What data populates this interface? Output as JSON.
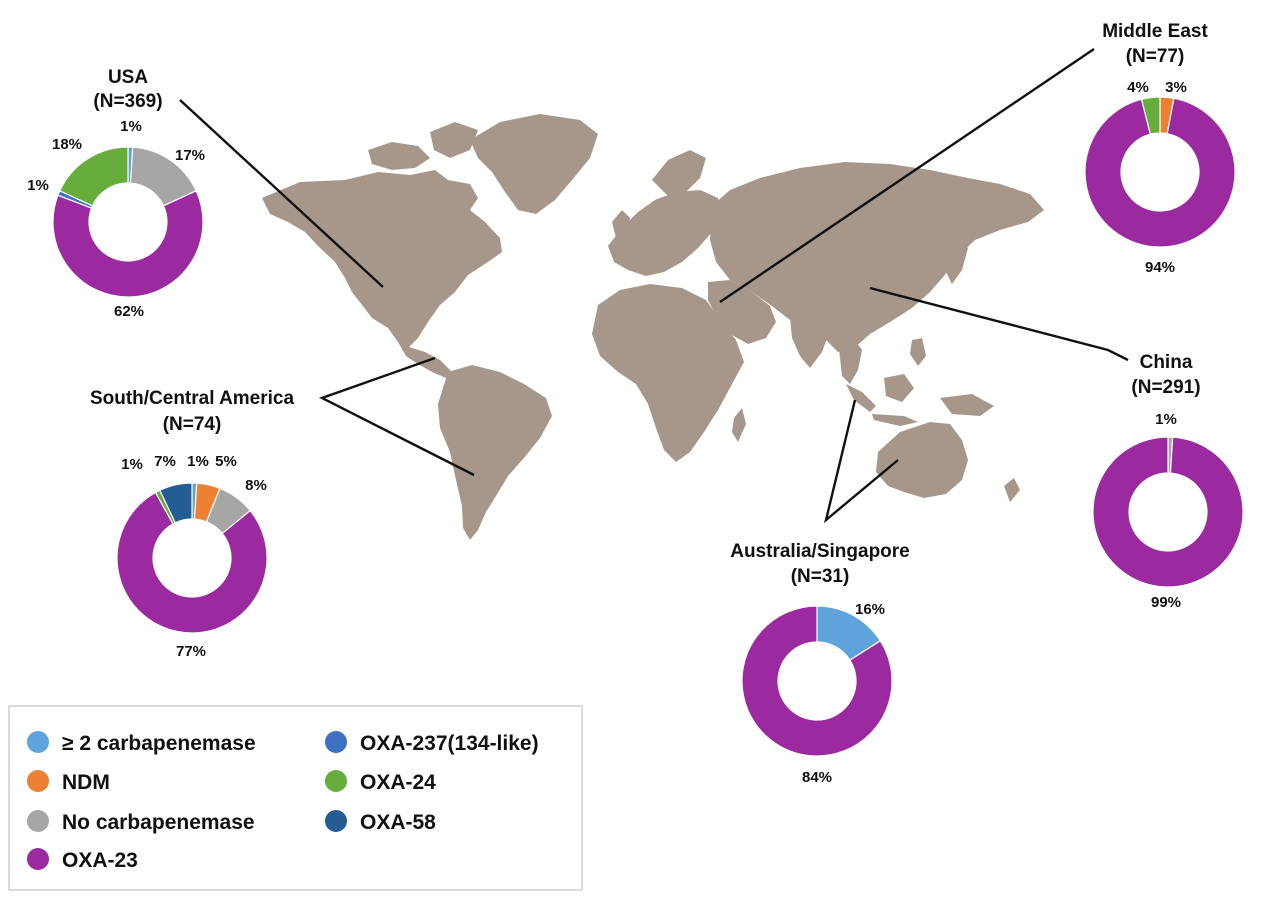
{
  "colors": {
    "map_land": "#a7978a",
    "ge2_carbapenemase": "#5ea3dc",
    "NDM": "#ed8033",
    "No_carbapenemase": "#a6a6a6",
    "OXA-23": "#9b2aa0",
    "OXA-237": "#3d6fc3",
    "OXA-24": "#66ad3c",
    "OXA-58": "#235d93"
  },
  "legend": {
    "items": [
      {
        "key": "ge2",
        "label": "≥ 2 carbapenemase",
        "color": "#5ea3dc"
      },
      {
        "key": "ndm",
        "label": "NDM",
        "color": "#ed8033"
      },
      {
        "key": "none",
        "label": "No carbapenemase",
        "color": "#a6a6a6"
      },
      {
        "key": "oxa23",
        "label": "OXA-23",
        "color": "#9b2aa0"
      },
      {
        "key": "oxa237",
        "label": "OXA-237(134-like)",
        "color": "#3d6fc3"
      },
      {
        "key": "oxa24",
        "label": "OXA-24",
        "color": "#66ad3c"
      },
      {
        "key": "oxa58",
        "label": "OXA-58",
        "color": "#235d93"
      }
    ]
  },
  "chart_data": [
    {
      "type": "pie",
      "region": "USA",
      "n_label": "(N=369)",
      "slices": [
        {
          "category": "≥ 2 carbapenemase",
          "value": 1,
          "label": "1%"
        },
        {
          "category": "No carbapenemase",
          "value": 17,
          "label": "17%"
        },
        {
          "category": "OXA-23",
          "value": 62,
          "label": "62%"
        },
        {
          "category": "OXA-237(134-like)",
          "value": 1,
          "label": "1%"
        },
        {
          "category": "OXA-24",
          "value": 18,
          "label": "18%"
        }
      ]
    },
    {
      "type": "pie",
      "region": "South/Central America",
      "n_label": "(N=74)",
      "slices": [
        {
          "category": "≥ 2 carbapenemase",
          "value": 1,
          "label": "1%"
        },
        {
          "category": "NDM",
          "value": 5,
          "label": "5%"
        },
        {
          "category": "No carbapenemase",
          "value": 8,
          "label": "8%"
        },
        {
          "category": "OXA-23",
          "value": 77,
          "label": "77%"
        },
        {
          "category": "OXA-24",
          "value": 1,
          "label": "1%"
        },
        {
          "category": "OXA-58",
          "value": 7,
          "label": "7%"
        }
      ]
    },
    {
      "type": "pie",
      "region": "Middle East",
      "n_label": "(N=77)",
      "slices": [
        {
          "category": "NDM",
          "value": 3,
          "label": "3%"
        },
        {
          "category": "OXA-23",
          "value": 94,
          "label": "94%"
        },
        {
          "category": "OXA-24",
          "value": 4,
          "label": "4%"
        }
      ]
    },
    {
      "type": "pie",
      "region": "China",
      "n_label": "(N=291)",
      "slices": [
        {
          "category": "No carbapenemase",
          "value": 1,
          "label": "1%"
        },
        {
          "category": "OXA-23",
          "value": 99,
          "label": "99%"
        }
      ]
    },
    {
      "type": "pie",
      "region": "Australia/Singapore",
      "n_label": "(N=31)",
      "slices": [
        {
          "category": "≥ 2 carbapenemase",
          "value": 16,
          "label": "16%"
        },
        {
          "category": "OXA-23",
          "value": 84,
          "label": "84%"
        }
      ]
    }
  ]
}
